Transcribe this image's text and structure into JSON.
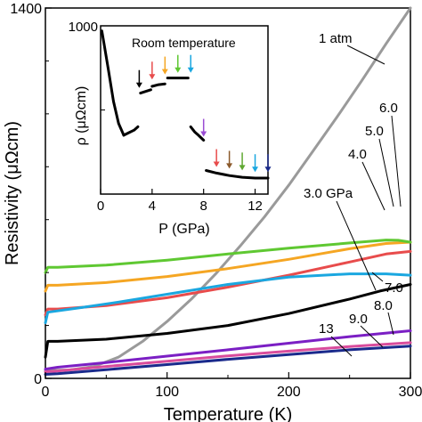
{
  "chart_data": [
    {
      "type": "line",
      "xlabel": "Temperature (K)",
      "ylabel": "Resistivity (μΩcm)",
      "xlim": [
        0,
        300
      ],
      "ylim": [
        0,
        1400
      ],
      "xticks": [
        "0",
        "100",
        "200",
        "300"
      ],
      "yticks": [
        "0",
        "1400"
      ],
      "grid": false,
      "series": [
        {
          "name": "1 atm",
          "color": "#9a9a9a",
          "x": [
            0,
            20,
            40,
            60,
            80,
            100,
            120,
            140,
            160,
            180,
            200,
            220,
            240,
            260,
            280,
            300
          ],
          "y": [
            30,
            32,
            45,
            80,
            140,
            215,
            300,
            395,
            500,
            610,
            730,
            860,
            990,
            1125,
            1265,
            1400
          ]
        },
        {
          "name": "3.0 GPa",
          "color": "#000000",
          "x": [
            0,
            2,
            10,
            50,
            100,
            150,
            200,
            250,
            275,
            300
          ],
          "y": [
            80,
            140,
            140,
            148,
            170,
            200,
            245,
            300,
            330,
            355
          ]
        },
        {
          "name": "4.0",
          "color": "#e84c4c",
          "x": [
            0,
            2,
            10,
            50,
            100,
            150,
            200,
            250,
            280,
            300
          ],
          "y": [
            240,
            262,
            262,
            275,
            305,
            345,
            390,
            440,
            470,
            480
          ]
        },
        {
          "name": "5.0",
          "color": "#f5a623",
          "x": [
            0,
            2,
            10,
            50,
            100,
            150,
            200,
            250,
            280,
            300
          ],
          "y": [
            330,
            352,
            352,
            362,
            385,
            415,
            450,
            490,
            510,
            515
          ]
        },
        {
          "name": "6.0",
          "color": "#5fc832",
          "x": [
            0,
            2,
            10,
            50,
            100,
            150,
            200,
            250,
            280,
            290,
            300
          ],
          "y": [
            400,
            420,
            420,
            428,
            447,
            470,
            492,
            512,
            523,
            522,
            515
          ]
        },
        {
          "name": "7.0",
          "color": "#1aa7e0",
          "x": [
            0,
            2,
            10,
            30,
            60,
            100,
            150,
            200,
            250,
            280,
            300
          ],
          "y": [
            210,
            250,
            255,
            268,
            288,
            318,
            355,
            383,
            395,
            395,
            390
          ]
        },
        {
          "name": "8.0",
          "color": "#7b1fc4",
          "x": [
            0,
            10,
            50,
            100,
            150,
            200,
            250,
            300
          ],
          "y": [
            35,
            42,
            60,
            84,
            108,
            133,
            158,
            180
          ]
        },
        {
          "name": "9.0",
          "color": "#d94c9c",
          "x": [
            0,
            10,
            50,
            100,
            150,
            200,
            250,
            300
          ],
          "y": [
            25,
            28,
            45,
            65,
            85,
            103,
            120,
            135
          ]
        },
        {
          "name": "13",
          "color": "#1a2a8c",
          "x": [
            0,
            10,
            50,
            100,
            150,
            200,
            250,
            300
          ],
          "y": [
            15,
            18,
            33,
            52,
            72,
            90,
            108,
            122
          ]
        }
      ]
    },
    {
      "type": "line",
      "title": "Room temperature",
      "xlabel": "P (GPa)",
      "ylabel": "ρ (μΩcm)",
      "xlim": [
        0,
        13
      ],
      "ylim": [
        0,
        1000
      ],
      "xticks": [
        "0",
        "4",
        "8",
        "12"
      ],
      "yticks": [
        "1000"
      ],
      "segments": [
        {
          "x": [
            0.1,
            0.3,
            0.6,
            1.0,
            1.4,
            1.8
          ],
          "y": [
            970,
            880,
            740,
            550,
            420,
            350
          ]
        },
        {
          "x": [
            1.8,
            2.2,
            2.6,
            2.9
          ],
          "y": [
            350,
            365,
            380,
            400
          ]
        },
        {
          "x": [
            3.1,
            3.5,
            3.9
          ],
          "y": [
            600,
            610,
            620
          ]
        },
        {
          "x": [
            4.0,
            4.5,
            5.0
          ],
          "y": [
            640,
            650,
            655
          ]
        },
        {
          "x": [
            5.2,
            6.0,
            6.8
          ],
          "y": [
            690,
            690,
            690
          ]
        },
        {
          "x": [
            7.0,
            7.3,
            7.6,
            8.0
          ],
          "y": [
            400,
            370,
            350,
            320
          ]
        },
        {
          "x": [
            8.2,
            9.0,
            10.0,
            11.0,
            12.0,
            13.0
          ],
          "y": [
            140,
            125,
            110,
            100,
            95,
            95
          ]
        }
      ],
      "arrows": [
        {
          "x": 3.0,
          "color": "#000000",
          "y_tip": 610
        },
        {
          "x": 4.0,
          "color": "#e84c4c",
          "y_tip": 660
        },
        {
          "x": 5.0,
          "color": "#f5a623",
          "y_tip": 690
        },
        {
          "x": 6.0,
          "color": "#5fc832",
          "y_tip": 700
        },
        {
          "x": 7.0,
          "color": "#1aa7e0",
          "y_tip": 700
        },
        {
          "x": 8.0,
          "color": "#9b4dd4",
          "y_tip": 320
        },
        {
          "x": 9.0,
          "color": "#e84c4c",
          "y_tip": 140
        },
        {
          "x": 10.0,
          "color": "#8b5a2b",
          "y_tip": 130
        },
        {
          "x": 11.0,
          "color": "#5fa832",
          "y_tip": 120
        },
        {
          "x": 12.0,
          "color": "#1aa7e0",
          "y_tip": 110
        },
        {
          "x": 13.0,
          "color": "#1a2a8c",
          "y_tip": 110
        }
      ]
    }
  ]
}
